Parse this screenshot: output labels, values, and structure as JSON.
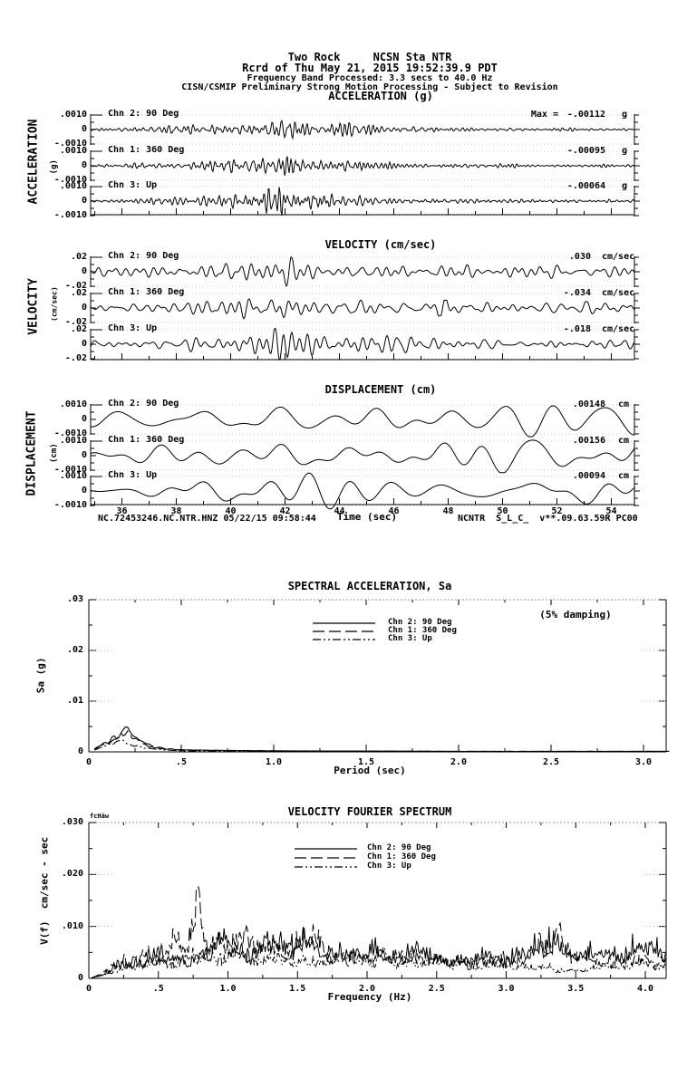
{
  "header": {
    "station_line": "Two Rock     NCSN Sta NTR",
    "record_line": "Rcrd of Thu May 21, 2015 19:52:39.9 PDT",
    "band_line": "Frequency Band Processed: 3.3 secs to 40.0 Hz",
    "notice_line": "CISN/CSMIP Preliminary Strong Motion Processing - Subject to Revision"
  },
  "timeseries": {
    "time_label": "Time (sec)",
    "footer_left": "NC.72453246.NC.NTR.HNZ 05/22/15 09:58:44",
    "footer_right": "NCNTR  S_L_C_  v**.09.63.59R PC00"
  },
  "chart_data": [
    {
      "type": "line",
      "kind": "waveform-triplet",
      "title": "ACCELERATION (g)",
      "side_label": "ACCELERATION",
      "side_unit": "(g)",
      "xlabel": "Time (sec)",
      "xlim": [
        34.85,
        54.85
      ],
      "xticks": [
        36,
        38,
        40,
        42,
        44,
        46,
        48,
        50,
        52,
        54
      ],
      "ytick_labels": [
        ".0010",
        "0",
        "-.0010"
      ],
      "ytick_value": 0.001,
      "series": [
        {
          "name": "Chn 2: 90 Deg",
          "max_prefix": "Max =",
          "max_value": "-.00112",
          "unit": "g"
        },
        {
          "name": "Chn 1: 360 Deg",
          "max_value": "-.00095",
          "unit": "g"
        },
        {
          "name": "Chn 3: Up",
          "max_value": "-.00064",
          "unit": "g"
        }
      ],
      "envelope": [
        [
          34.85,
          0.1
        ],
        [
          37,
          0.16
        ],
        [
          38.5,
          0.25
        ],
        [
          40,
          0.38
        ],
        [
          41,
          0.5
        ],
        [
          41.6,
          0.85
        ],
        [
          41.9,
          1.0
        ],
        [
          42.3,
          0.6
        ],
        [
          43,
          0.45
        ],
        [
          44,
          0.4
        ],
        [
          45,
          0.32
        ],
        [
          46.5,
          0.22
        ],
        [
          48,
          0.16
        ],
        [
          50,
          0.12
        ],
        [
          52,
          0.1
        ],
        [
          54.85,
          0.1
        ]
      ],
      "freq_cycles": [
        55,
        150
      ]
    },
    {
      "type": "line",
      "kind": "waveform-triplet",
      "title": "VELOCITY (cm/sec)",
      "side_label": "VELOCITY",
      "side_unit": "(cm/sec)",
      "xlabel": "Time (sec)",
      "xlim": [
        34.85,
        54.85
      ],
      "xticks": [
        36,
        38,
        40,
        42,
        44,
        46,
        48,
        50,
        52,
        54
      ],
      "ytick_labels": [
        ".02",
        "0",
        "-.02"
      ],
      "ytick_value": 0.02,
      "series": [
        {
          "name": "Chn 2: 90 Deg",
          "max_value": ".030",
          "unit": "cm/sec"
        },
        {
          "name": "Chn 1: 360 Deg",
          "max_value": "-.034",
          "unit": "cm/sec"
        },
        {
          "name": "Chn 3: Up",
          "max_value": "-.018",
          "unit": "cm/sec"
        }
      ],
      "envelope": [
        [
          34.85,
          0.22
        ],
        [
          36.5,
          0.3
        ],
        [
          38,
          0.35
        ],
        [
          39.5,
          0.5
        ],
        [
          40.5,
          0.6
        ],
        [
          41.5,
          0.8
        ],
        [
          41.9,
          1.0
        ],
        [
          42.4,
          0.7
        ],
        [
          43.5,
          0.55
        ],
        [
          45,
          0.5
        ],
        [
          47,
          0.45
        ],
        [
          49,
          0.4
        ],
        [
          51,
          0.38
        ],
        [
          53,
          0.35
        ],
        [
          54.85,
          0.33
        ]
      ],
      "freq_cycles": [
        22,
        70
      ]
    },
    {
      "type": "line",
      "kind": "waveform-triplet",
      "title": "DISPLACEMENT (cm)",
      "side_label": "DISPLACEMENT",
      "side_unit": "(cm)",
      "xlabel": "Time (sec)",
      "xlim": [
        34.85,
        54.85
      ],
      "xticks": [
        36,
        38,
        40,
        42,
        44,
        46,
        48,
        50,
        52,
        54
      ],
      "ytick_labels": [
        ".0010",
        "0",
        "-.0010"
      ],
      "ytick_value": 0.001,
      "series": [
        {
          "name": "Chn 2: 90 Deg",
          "max_value": ".00148",
          "unit": "cm"
        },
        {
          "name": "Chn 1: 360 Deg",
          "max_value": ".00156",
          "unit": "cm"
        },
        {
          "name": "Chn 3: Up",
          "max_value": ".00094",
          "unit": "cm"
        }
      ],
      "envelope": [
        [
          34.85,
          0.45
        ],
        [
          36.5,
          0.55
        ],
        [
          38,
          0.7
        ],
        [
          39.5,
          0.8
        ],
        [
          41,
          0.95
        ],
        [
          42,
          1.0
        ],
        [
          43.5,
          0.95
        ],
        [
          45,
          0.85
        ],
        [
          46.5,
          0.8
        ],
        [
          48.5,
          0.75
        ],
        [
          50.5,
          0.75
        ],
        [
          52.5,
          0.8
        ],
        [
          54.85,
          0.7
        ]
      ],
      "freq_cycles": [
        4.5,
        17
      ]
    },
    {
      "type": "line",
      "title": "SPECTRAL ACCELERATION, Sa",
      "xlabel": "Period (sec)",
      "ylabel": "Sa (g)",
      "annotation": "(5% damping)",
      "xlim": [
        0,
        3.15
      ],
      "ylim": [
        0,
        0.03
      ],
      "xtick_labels": [
        "0",
        ".5",
        "1.0",
        "1.5",
        "2.0",
        "2.5",
        "3.0"
      ],
      "xtick_values": [
        0,
        0.5,
        1.0,
        1.5,
        2.0,
        2.5,
        3.0
      ],
      "ytick_labels": [
        "0",
        ".01",
        ".02",
        ".03"
      ],
      "ytick_values": [
        0,
        0.01,
        0.02,
        0.03
      ],
      "series": [
        {
          "name": "Chn 2: 90 Deg",
          "style": "solid",
          "points": [
            [
              0.03,
              0.0006
            ],
            [
              0.06,
              0.0012
            ],
            [
              0.1,
              0.002
            ],
            [
              0.14,
              0.0028
            ],
            [
              0.17,
              0.0032
            ],
            [
              0.2,
              0.0054
            ],
            [
              0.22,
              0.0038
            ],
            [
              0.25,
              0.003
            ],
            [
              0.3,
              0.0018
            ],
            [
              0.35,
              0.001
            ],
            [
              0.42,
              0.0006
            ],
            [
              0.5,
              0.0004
            ],
            [
              0.7,
              0.0003
            ],
            [
              1.0,
              0.0002
            ],
            [
              1.5,
              0.00015
            ],
            [
              2.0,
              0.0001
            ],
            [
              2.5,
              0.0001
            ],
            [
              3.15,
              0.0001
            ]
          ]
        },
        {
          "name": "Chn 1: 360 Deg",
          "style": "long-dash",
          "points": [
            [
              0.03,
              0.0005
            ],
            [
              0.1,
              0.0018
            ],
            [
              0.15,
              0.0026
            ],
            [
              0.2,
              0.004
            ],
            [
              0.25,
              0.0026
            ],
            [
              0.3,
              0.0014
            ],
            [
              0.4,
              0.0006
            ],
            [
              0.5,
              0.0003
            ],
            [
              1.0,
              0.0002
            ],
            [
              2.0,
              0.0001
            ],
            [
              3.15,
              0.0001
            ]
          ]
        },
        {
          "name": "Chn 3: Up",
          "style": "dash-dot",
          "points": [
            [
              0.03,
              0.0004
            ],
            [
              0.08,
              0.001
            ],
            [
              0.12,
              0.0016
            ],
            [
              0.16,
              0.0022
            ],
            [
              0.2,
              0.0018
            ],
            [
              0.25,
              0.0012
            ],
            [
              0.3,
              0.0008
            ],
            [
              0.4,
              0.0004
            ],
            [
              0.5,
              0.0002
            ],
            [
              1.0,
              0.0001
            ],
            [
              3.15,
              0.0001
            ]
          ]
        }
      ]
    },
    {
      "type": "line",
      "title": "VELOCITY FOURIER SPECTRUM",
      "corner_label": "fcHäw",
      "xlabel": "Frequency (Hz)",
      "ylabel": "V(f)  cm/sec - sec",
      "xlim": [
        0,
        4.15
      ],
      "ylim": [
        0,
        0.03
      ],
      "xtick_labels": [
        "0",
        ".5",
        "1.0",
        "1.5",
        "2.0",
        "2.5",
        "3.0",
        "3.5",
        "4.0"
      ],
      "xtick_values": [
        0,
        0.5,
        1.0,
        1.5,
        2.0,
        2.5,
        3.0,
        3.5,
        4.0
      ],
      "ytick_labels": [
        "0",
        ".010",
        ".020",
        ".030"
      ],
      "ytick_values": [
        0,
        0.01,
        0.02,
        0.03
      ],
      "series": [
        {
          "name": "Chn 2: 90 Deg",
          "style": "solid",
          "envelope": [
            [
              0,
              0
            ],
            [
              0.1,
              0.001
            ],
            [
              0.2,
              0.003
            ],
            [
              0.35,
              0.0045
            ],
            [
              0.5,
              0.005
            ],
            [
              0.65,
              0.0055
            ],
            [
              0.8,
              0.006
            ],
            [
              0.95,
              0.009
            ],
            [
              1.1,
              0.0075
            ],
            [
              1.25,
              0.008
            ],
            [
              1.4,
              0.009
            ],
            [
              1.55,
              0.009
            ],
            [
              1.7,
              0.007
            ],
            [
              1.85,
              0.006
            ],
            [
              2.0,
              0.0065
            ],
            [
              2.15,
              0.006
            ],
            [
              2.3,
              0.007
            ],
            [
              2.5,
              0.006
            ],
            [
              2.65,
              0.0045
            ],
            [
              2.8,
              0.005
            ],
            [
              3.0,
              0.006
            ],
            [
              3.15,
              0.006
            ],
            [
              3.3,
              0.01
            ],
            [
              3.4,
              0.0085
            ],
            [
              3.55,
              0.006
            ],
            [
              3.7,
              0.006
            ],
            [
              3.85,
              0.007
            ],
            [
              4.0,
              0.008
            ],
            [
              4.15,
              0.006
            ]
          ]
        },
        {
          "name": "Chn 1: 360 Deg",
          "style": "long-dash",
          "envelope": [
            [
              0,
              0
            ],
            [
              0.1,
              0.001
            ],
            [
              0.2,
              0.004
            ],
            [
              0.3,
              0.005
            ],
            [
              0.45,
              0.006
            ],
            [
              0.6,
              0.008
            ],
            [
              0.7,
              0.01
            ],
            [
              0.8,
              0.019
            ],
            [
              0.9,
              0.009
            ],
            [
              1.0,
              0.008
            ],
            [
              1.1,
              0.011
            ],
            [
              1.25,
              0.008
            ],
            [
              1.4,
              0.007
            ],
            [
              1.55,
              0.011
            ],
            [
              1.7,
              0.007
            ],
            [
              1.9,
              0.005
            ],
            [
              2.1,
              0.007
            ],
            [
              2.3,
              0.006
            ],
            [
              2.5,
              0.005
            ],
            [
              2.7,
              0.004
            ],
            [
              2.9,
              0.0045
            ],
            [
              3.1,
              0.005
            ],
            [
              3.25,
              0.009
            ],
            [
              3.35,
              0.012
            ],
            [
              3.5,
              0.007
            ],
            [
              3.65,
              0.004
            ],
            [
              3.8,
              0.0045
            ],
            [
              4.0,
              0.005
            ],
            [
              4.15,
              0.0045
            ]
          ]
        },
        {
          "name": "Chn 3: Up",
          "style": "dash-dot",
          "envelope": [
            [
              0,
              0
            ],
            [
              0.1,
              0.0008
            ],
            [
              0.2,
              0.002
            ],
            [
              0.35,
              0.0035
            ],
            [
              0.5,
              0.004
            ],
            [
              0.7,
              0.005
            ],
            [
              0.9,
              0.0065
            ],
            [
              1.05,
              0.006
            ],
            [
              1.2,
              0.005
            ],
            [
              1.4,
              0.0045
            ],
            [
              1.6,
              0.004
            ],
            [
              1.8,
              0.005
            ],
            [
              2.0,
              0.0055
            ],
            [
              2.2,
              0.004
            ],
            [
              2.4,
              0.0045
            ],
            [
              2.6,
              0.004
            ],
            [
              2.8,
              0.0035
            ],
            [
              3.0,
              0.0035
            ],
            [
              3.2,
              0.003
            ],
            [
              3.4,
              0.0025
            ],
            [
              3.55,
              0.002
            ],
            [
              3.7,
              0.003
            ],
            [
              3.9,
              0.004
            ],
            [
              4.15,
              0.0035
            ]
          ]
        }
      ]
    }
  ]
}
